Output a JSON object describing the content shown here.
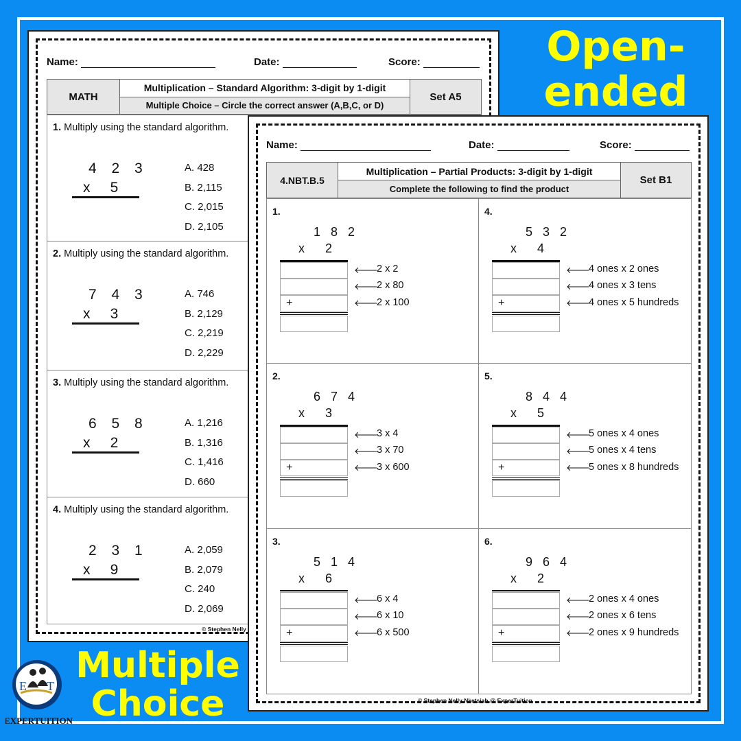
{
  "labels": {
    "name": "Name:",
    "date": "Date:",
    "score": "Score:"
  },
  "promo": {
    "open_line1": "Open-",
    "open_line2": "ended",
    "mc_line1": "Multiple",
    "mc_line2": "Choice",
    "logo_text": "EXPERTUITION"
  },
  "colors": {
    "background": "#0a8cf2",
    "headline": "#ffff00"
  },
  "sheet_a": {
    "subject": "MATH",
    "title": "Multiplication – Standard Algorithm: 3-digit by 1-digit",
    "subtitle": "Multiple Choice – Circle the correct answer (A,B,C, or D)",
    "set": "Set A5",
    "credit": "© Stephen Nelly",
    "questions": [
      {
        "label": "1.",
        "text": "Multiply using the standard algorithm.",
        "top": "4 2 3",
        "bottom": "x     5",
        "choices": [
          "A. 428",
          "B. 2,115",
          "C. 2,015",
          "D. 2,105"
        ]
      },
      {
        "label": "2.",
        "text": "Multiply using the standard algorithm.",
        "top": "7 4 3",
        "bottom": "x     3",
        "choices": [
          "A. 746",
          "B. 2,129",
          "C. 2,219",
          "D. 2,229"
        ]
      },
      {
        "label": "3.",
        "text": "Multiply using the standard algorithm.",
        "top": "6 5 8",
        "bottom": "x     2",
        "choices": [
          "A. 1,216",
          "B. 1,316",
          "C. 1,416",
          "D. 660"
        ]
      },
      {
        "label": "4.",
        "text": "Multiply using the standard algorithm.",
        "top": "2 3 1",
        "bottom": "x     9",
        "choices": [
          "A. 2,059",
          "B. 2,079",
          "C. 240",
          "D. 2,069"
        ]
      }
    ]
  },
  "sheet_b": {
    "standard": "4.NBT.B.5",
    "title": "Multiplication – Partial Products: 3-digit by 1-digit",
    "subtitle": "Complete the following to find the product",
    "set": "Set B1",
    "credit": "© Stephen Nelly Nketsiah @ ExperTuition",
    "plus": "+",
    "arrow": "🡐",
    "problems": [
      {
        "label": "1.",
        "top": "1 8 2",
        "bottom": "x      2",
        "steps": [
          "2 x 2",
          "2 x 80",
          "2 x 100"
        ]
      },
      {
        "label": "4.",
        "top": "5 3 2",
        "bottom": "x      4",
        "steps": [
          "4 ones x 2 ones",
          "4 ones x 3 tens",
          "4 ones x 5 hundreds"
        ]
      },
      {
        "label": "2.",
        "top": "6 7 4",
        "bottom": "x      3",
        "steps": [
          "3 x 4",
          "3 x 70",
          "3 x 600"
        ]
      },
      {
        "label": "5.",
        "top": "8 4 4",
        "bottom": "x      5",
        "steps": [
          "5 ones x 4 ones",
          "5 ones x 4 tens",
          "5 ones x 8 hundreds"
        ]
      },
      {
        "label": "3.",
        "top": "5 1 4",
        "bottom": "x      6",
        "steps": [
          "6 x 4",
          "6 x 10",
          "6 x 500"
        ]
      },
      {
        "label": "6.",
        "top": "9 6 4",
        "bottom": "x      2",
        "steps": [
          "2 ones x 4 ones",
          "2 ones x 6 tens",
          "2 ones x 9 hundreds"
        ]
      }
    ]
  }
}
